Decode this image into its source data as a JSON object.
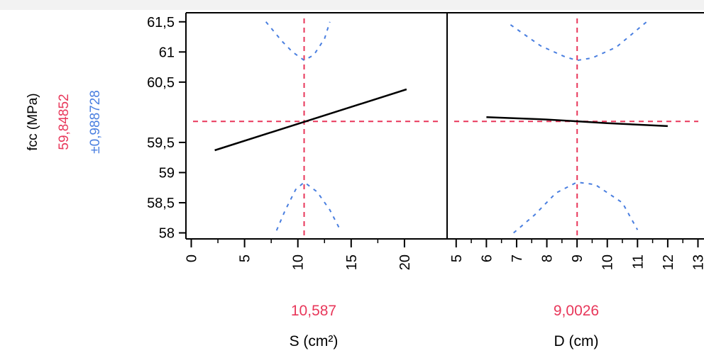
{
  "chart_data": {
    "type": "line",
    "y_label": "fcc (MPa)",
    "y_prediction": "59,84852",
    "y_ci": "±0,988728",
    "y_ticks": [
      {
        "value": 61.5,
        "label": "61,5"
      },
      {
        "value": 61.0,
        "label": "61"
      },
      {
        "value": 60.5,
        "label": "60,5"
      },
      {
        "value": 59.5,
        "label": "59,5"
      },
      {
        "value": 59.0,
        "label": "59"
      },
      {
        "value": 58.5,
        "label": "58,5"
      },
      {
        "value": 58.0,
        "label": "58"
      }
    ],
    "ylim": [
      57.9,
      61.65
    ],
    "y_current": 59.84852,
    "colors": {
      "prediction": "#e8375a",
      "ci": "#4a7fe0",
      "line": "#000000",
      "frame": "#000000"
    },
    "panels": [
      {
        "name": "S",
        "xlabel": "S (cm²)",
        "current_label": "10,587",
        "current": 10.587,
        "xlim": [
          -0.5,
          24
        ],
        "x_ticks": [
          {
            "value": 0,
            "label": "0"
          },
          {
            "value": 5,
            "label": "5"
          },
          {
            "value": 10,
            "label": "10"
          },
          {
            "value": 15,
            "label": "15"
          },
          {
            "value": 20,
            "label": "20"
          }
        ],
        "prediction": [
          [
            2.2,
            59.37
          ],
          [
            20.2,
            60.38
          ]
        ],
        "ci_upper": [
          [
            7.0,
            61.5
          ],
          [
            8.5,
            61.18
          ],
          [
            9.5,
            61.0
          ],
          [
            10.6,
            60.86
          ],
          [
            11.5,
            60.95
          ],
          [
            12.5,
            61.22
          ],
          [
            13.0,
            61.5
          ]
        ],
        "ci_lower": [
          [
            8.0,
            58.04
          ],
          [
            8.8,
            58.37
          ],
          [
            9.8,
            58.72
          ],
          [
            10.6,
            58.84
          ],
          [
            11.8,
            58.68
          ],
          [
            13.0,
            58.38
          ],
          [
            14.0,
            58.04
          ]
        ]
      },
      {
        "name": "D",
        "xlabel": "D (cm)",
        "current_label": "9,0026",
        "current": 9.0026,
        "xlim": [
          4.7,
          13.2
        ],
        "x_ticks": [
          {
            "value": 5,
            "label": "5"
          },
          {
            "value": 6,
            "label": "6"
          },
          {
            "value": 7,
            "label": "7"
          },
          {
            "value": 8,
            "label": "8"
          },
          {
            "value": 9,
            "label": "9"
          },
          {
            "value": 10,
            "label": "10"
          },
          {
            "value": 11,
            "label": "11"
          },
          {
            "value": 12,
            "label": "12"
          },
          {
            "value": 13,
            "label": "13"
          }
        ],
        "prediction": [
          [
            6.0,
            59.92
          ],
          [
            8.0,
            59.88
          ],
          [
            9.0,
            59.85
          ],
          [
            10.0,
            59.82
          ],
          [
            12.0,
            59.77
          ]
        ],
        "ci_upper": [
          [
            6.8,
            61.45
          ],
          [
            7.8,
            61.1
          ],
          [
            8.6,
            60.92
          ],
          [
            9.0,
            60.86
          ],
          [
            9.5,
            60.9
          ],
          [
            10.3,
            61.08
          ],
          [
            11.3,
            61.5
          ]
        ],
        "ci_lower": [
          [
            6.9,
            58.0
          ],
          [
            7.6,
            58.3
          ],
          [
            8.3,
            58.66
          ],
          [
            9.0,
            58.84
          ],
          [
            9.6,
            58.8
          ],
          [
            10.5,
            58.5
          ],
          [
            11.0,
            58.05
          ]
        ]
      }
    ]
  }
}
